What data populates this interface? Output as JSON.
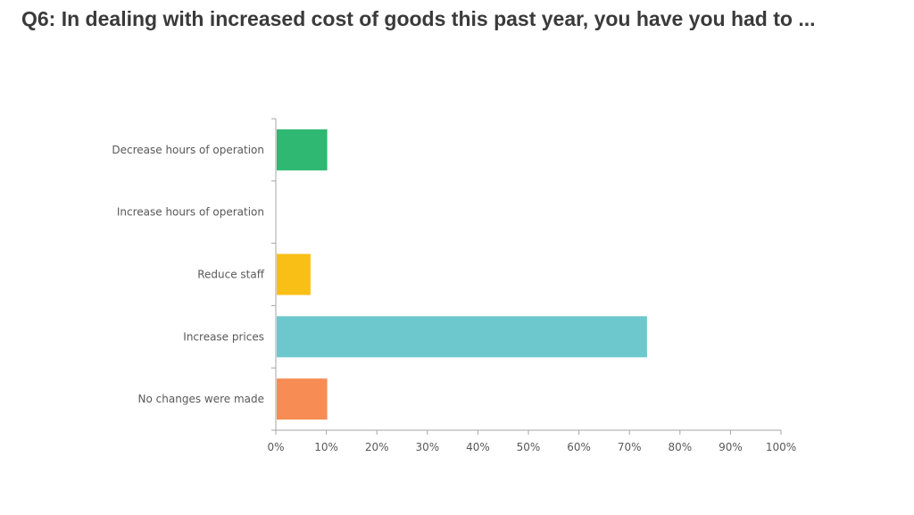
{
  "title": "Q6: In dealing with increased cost of goods this past year, you have you had to ...",
  "chart_data": {
    "type": "bar",
    "orientation": "horizontal",
    "title": "Q6: In dealing with increased cost of goods this past year, you have you had to ...",
    "xlabel": "",
    "ylabel": "",
    "categories": [
      "Decrease hours of operation",
      "Increase hours of operation",
      "Reduce staff",
      "Increase prices",
      "No changes were made"
    ],
    "values": [
      10,
      0,
      6.7,
      73.3,
      10
    ],
    "colors": [
      "#2eb872",
      "#cccccc",
      "#f9bf16",
      "#6cc8cd",
      "#f78c55"
    ],
    "xlim": [
      0,
      100
    ],
    "ticks": [
      "0%",
      "10%",
      "20%",
      "30%",
      "40%",
      "50%",
      "60%",
      "70%",
      "80%",
      "90%",
      "100%"
    ],
    "grid": false,
    "legend": "none"
  }
}
